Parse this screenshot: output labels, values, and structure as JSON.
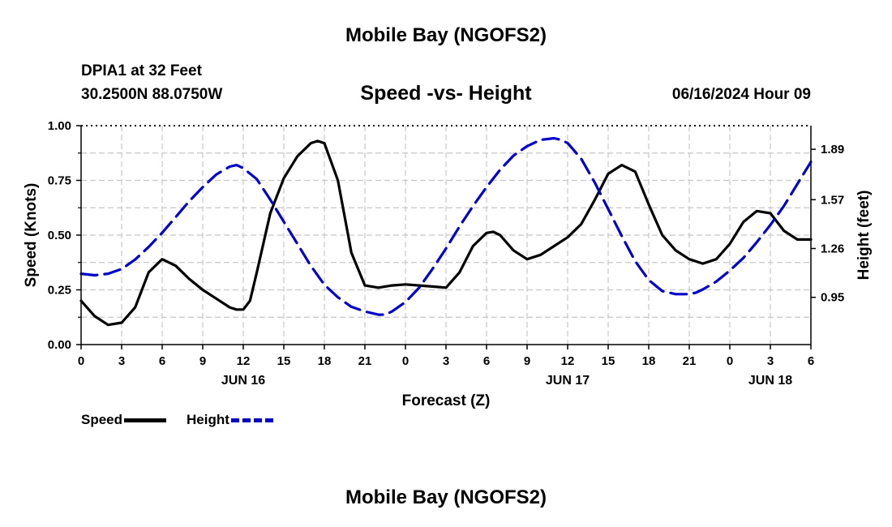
{
  "page": {
    "title_top": "Mobile Bay (NGOFS2)",
    "title_bottom": "Mobile Bay (NGOFS2)",
    "station": "DPIA1 at 32 Feet",
    "coordinates": "30.2500N  88.0750W",
    "subtitle": "Speed -vs- Height",
    "datetime": "06/16/2024 Hour 09"
  },
  "legend": {
    "speed_label": "Speed",
    "height_label": "Height"
  },
  "chart_data": {
    "type": "line",
    "title": "Speed -vs- Height",
    "xlabel": "Forecast (Z)",
    "ylabel_left": "Speed (Knots)",
    "ylabel_right": "Height (feet)",
    "x_range": [
      0,
      54
    ],
    "x_ticks": [
      0,
      3,
      6,
      9,
      12,
      15,
      18,
      21,
      24,
      27,
      30,
      33,
      36,
      39,
      42,
      45,
      48,
      51,
      54
    ],
    "x_tick_labels": [
      "0",
      "3",
      "6",
      "9",
      "12",
      "15",
      "18",
      "21",
      "0",
      "3",
      "6",
      "9",
      "12",
      "15",
      "18",
      "21",
      "0",
      "3",
      "6"
    ],
    "date_labels": [
      {
        "x": 12,
        "label": "JUN 16"
      },
      {
        "x": 36,
        "label": "JUN 17"
      },
      {
        "x": 51,
        "label": "JUN 18"
      }
    ],
    "y_left_range": [
      0,
      1
    ],
    "y_left_ticks": [
      0,
      0.25,
      0.5,
      0.75,
      1
    ],
    "y_left_tick_labels": [
      "0.00",
      "0.25",
      "0.50",
      "0.75",
      "1.00"
    ],
    "y_right_range": [
      0.65,
      2.04
    ],
    "y_right_ticks": [
      0.95,
      1.26,
      1.57,
      1.89
    ],
    "y_right_tick_labels": [
      "0.95",
      "1.26",
      "1.57",
      "1.89"
    ],
    "grid": true,
    "series": [
      {
        "name": "Speed",
        "axis": "left",
        "color": "#000000",
        "style": "solid",
        "x": [
          0,
          1,
          2,
          3,
          4,
          5,
          6,
          7,
          8,
          9,
          10,
          11,
          11.5,
          12,
          12.5,
          13,
          14,
          15,
          16,
          17,
          17.5,
          18,
          19,
          20,
          21,
          22,
          23,
          24,
          25,
          26,
          27,
          28,
          29,
          30,
          30.5,
          31,
          32,
          33,
          34,
          35,
          36,
          37,
          38,
          39,
          40,
          41,
          42,
          43,
          44,
          45,
          46,
          47,
          48,
          49,
          50,
          51,
          52,
          53,
          54
        ],
        "values": [
          0.2,
          0.13,
          0.09,
          0.1,
          0.17,
          0.33,
          0.39,
          0.36,
          0.3,
          0.25,
          0.21,
          0.17,
          0.16,
          0.16,
          0.2,
          0.33,
          0.6,
          0.76,
          0.86,
          0.92,
          0.93,
          0.92,
          0.75,
          0.42,
          0.27,
          0.26,
          0.27,
          0.275,
          0.27,
          0.265,
          0.26,
          0.33,
          0.45,
          0.51,
          0.515,
          0.5,
          0.43,
          0.39,
          0.41,
          0.45,
          0.49,
          0.55,
          0.66,
          0.78,
          0.82,
          0.79,
          0.64,
          0.5,
          0.43,
          0.39,
          0.37,
          0.39,
          0.46,
          0.56,
          0.61,
          0.6,
          0.52,
          0.48,
          0.48
        ]
      },
      {
        "name": "Height",
        "axis": "right",
        "color": "#0000cc",
        "style": "dashed",
        "x": [
          0,
          1,
          2,
          3,
          4,
          5,
          6,
          7,
          8,
          9,
          10,
          11,
          11.5,
          12,
          13,
          14,
          15,
          16,
          17,
          18,
          19,
          20,
          21,
          22,
          22.5,
          23,
          24,
          25,
          26,
          27,
          28,
          29,
          30,
          31,
          32,
          33,
          34,
          35,
          35.5,
          36,
          37,
          38,
          39,
          40,
          41,
          42,
          43,
          44,
          45,
          45.5,
          46,
          47,
          48,
          49,
          50,
          51,
          52,
          53,
          54
        ],
        "values": [
          1.1,
          1.09,
          1.1,
          1.13,
          1.19,
          1.27,
          1.36,
          1.46,
          1.56,
          1.65,
          1.73,
          1.78,
          1.79,
          1.77,
          1.7,
          1.57,
          1.43,
          1.29,
          1.15,
          1.03,
          0.95,
          0.89,
          0.86,
          0.84,
          0.84,
          0.86,
          0.92,
          1.01,
          1.13,
          1.26,
          1.4,
          1.53,
          1.65,
          1.76,
          1.85,
          1.91,
          1.95,
          1.96,
          1.95,
          1.93,
          1.83,
          1.68,
          1.51,
          1.34,
          1.18,
          1.06,
          0.99,
          0.97,
          0.97,
          0.98,
          1.0,
          1.05,
          1.12,
          1.2,
          1.3,
          1.41,
          1.53,
          1.67,
          1.81
        ]
      }
    ]
  }
}
